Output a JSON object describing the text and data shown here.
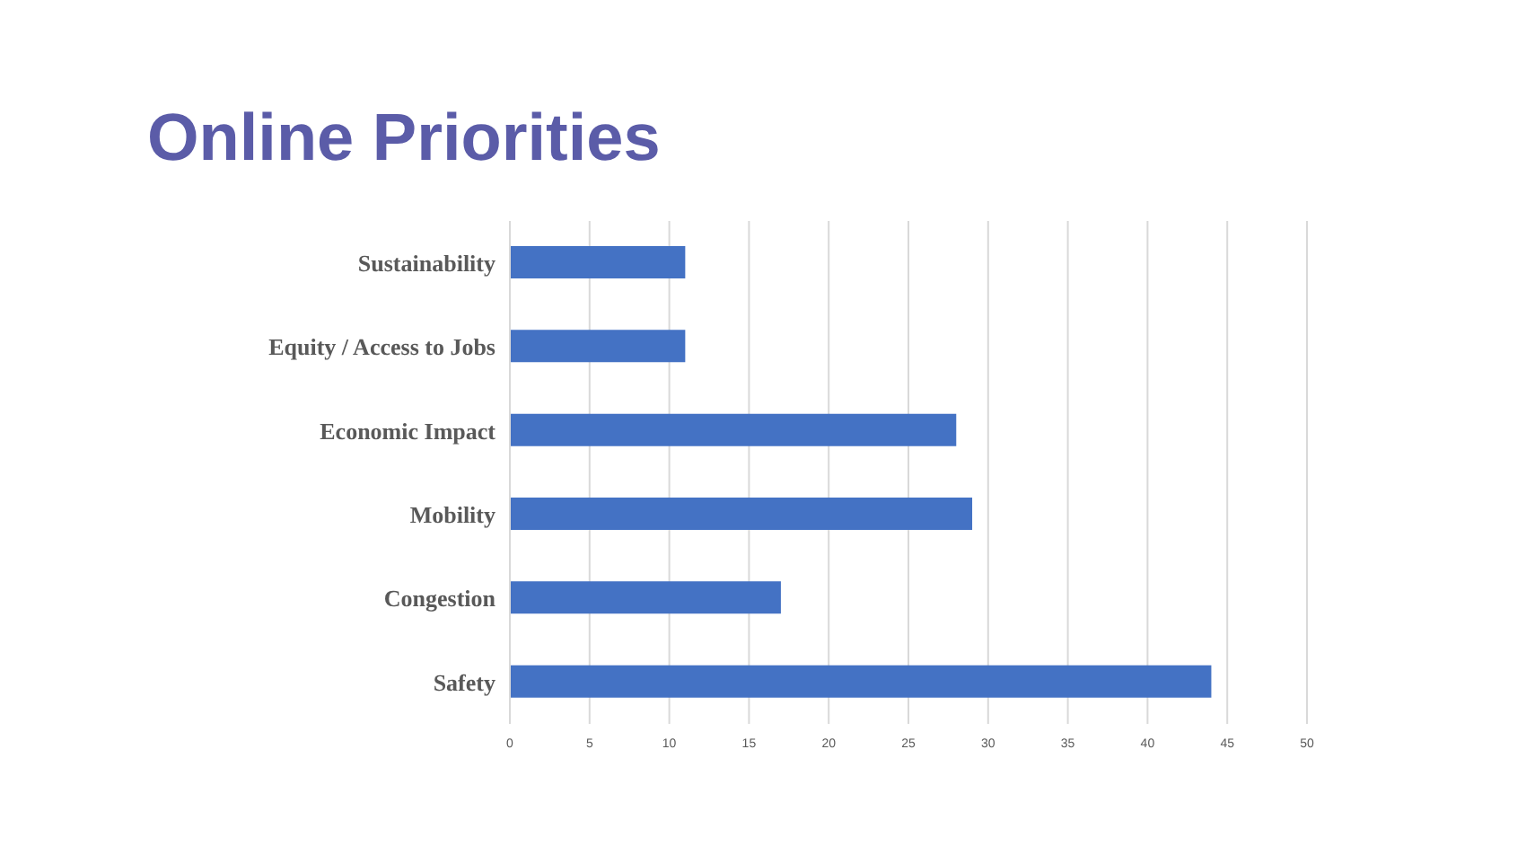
{
  "chart_data": {
    "type": "bar",
    "orientation": "horizontal",
    "title": "Online Priorities",
    "categories": [
      "Sustainability",
      "Equity / Access to Jobs",
      "Economic Impact",
      "Mobility",
      "Congestion",
      "Safety"
    ],
    "values": [
      11,
      11,
      28,
      29,
      17,
      44
    ],
    "color": "#4472c4",
    "xlim": [
      0,
      50
    ],
    "xticks": [
      0,
      5,
      10,
      15,
      20,
      25,
      30,
      35,
      40,
      45,
      50
    ],
    "grid": "x"
  }
}
